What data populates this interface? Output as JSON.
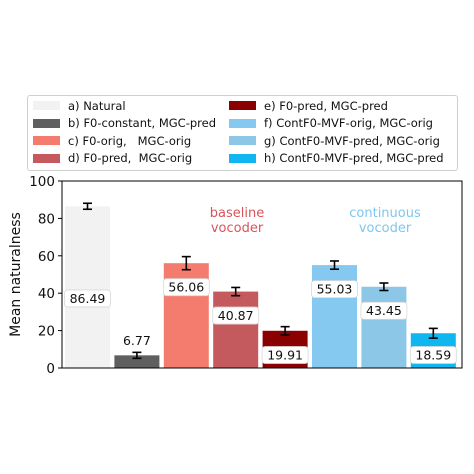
{
  "chart_data": {
    "type": "bar",
    "ylabel": "Mean naturalness",
    "ylim": [
      0,
      100
    ],
    "yticks": [
      "0",
      "20",
      "40",
      "60",
      "80",
      "100"
    ],
    "series": [
      {
        "name": "a) Natural",
        "value": 86.49,
        "label": "86.49",
        "err": 1.6,
        "color": "#f2f2f2"
      },
      {
        "name": "b) F0-constant, MGC-pred",
        "value": 6.77,
        "label": "6.77",
        "err": 1.6,
        "color": "#5f5f5f"
      },
      {
        "name": "c) F0-orig,   MGC-orig",
        "value": 56.06,
        "label": "56.06",
        "err": 3.5,
        "color": "#f47c6e"
      },
      {
        "name": "d) F0-pred,  MGC-orig",
        "value": 40.87,
        "label": "40.87",
        "err": 2.2,
        "color": "#c55a5e"
      },
      {
        "name": "e) F0-pred, MGC-pred",
        "value": 19.91,
        "label": "19.91",
        "err": 2.2,
        "color": "#8b0000"
      },
      {
        "name": "f) ContF0-MVF-orig, MGC-orig",
        "value": 55.03,
        "label": "55.03",
        "err": 2.2,
        "color": "#86c9f0"
      },
      {
        "name": "g) ContF0-MVF-pred, MGC-orig",
        "value": 43.45,
        "label": "43.45",
        "err": 2.0,
        "color": "#8cc7e8"
      },
      {
        "name": "h) ContF0-MVF-pred, MGC-pred",
        "value": 18.59,
        "label": "18.59",
        "err": 2.6,
        "color": "#10b6f0"
      }
    ],
    "annotations": [
      {
        "lines": [
          "baseline",
          "vocoder"
        ],
        "color": "#d9535a"
      },
      {
        "lines": [
          "continuous",
          "vocoder"
        ],
        "color": "#7ec6ee"
      }
    ],
    "legend_position": "top"
  }
}
